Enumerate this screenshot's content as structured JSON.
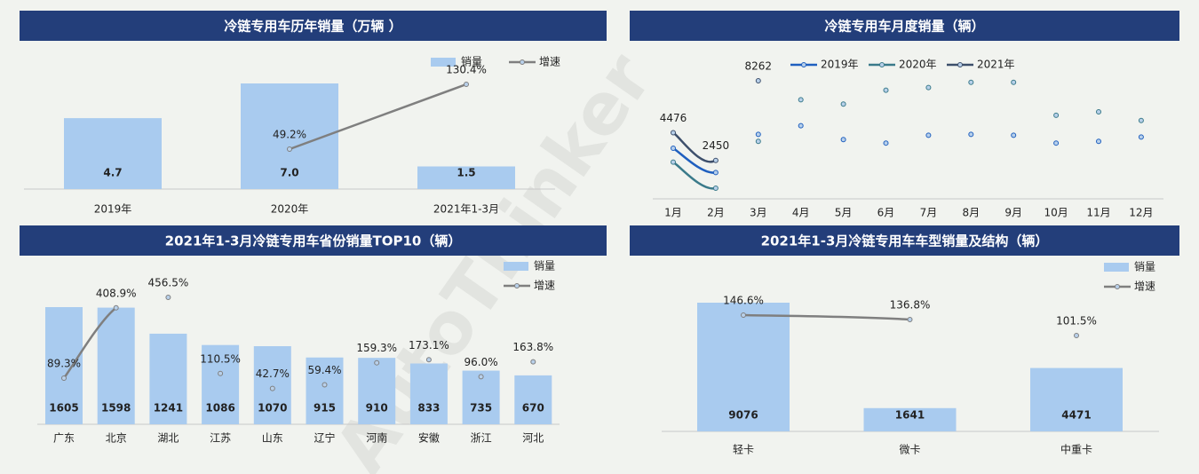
{
  "watermark": "AutoThinker",
  "chart_data": [
    {
      "type": "bar_line",
      "title": "冷链专用车历年销量（万辆 ）",
      "categories": [
        "2019年",
        "2020年",
        "2021年1-3月"
      ],
      "series": [
        {
          "name": "销量",
          "type": "bar",
          "color": "#a9cbef",
          "values": [
            4.7,
            7.0,
            1.5
          ],
          "value_labels": [
            "4.7",
            "7.0",
            "1.5"
          ]
        },
        {
          "name": "增速",
          "type": "line",
          "color": "#7f7f7f",
          "values": [
            null,
            49.2,
            130.4
          ],
          "value_labels": [
            null,
            "49.2%",
            "130.4%"
          ]
        }
      ]
    },
    {
      "type": "line",
      "title": "冷链专用车月度销量（辆）",
      "categories": [
        "1月",
        "2月",
        "3月",
        "4月",
        "5月",
        "6月",
        "7月",
        "8月",
        "9月",
        "10月",
        "11月",
        "12月"
      ],
      "series": [
        {
          "name": "2019年",
          "color": "#1f5fbf",
          "values": [
            3337,
            1565,
            4349,
            4982,
            3970,
            3716,
            4286,
            4349,
            4286,
            3716,
            3843,
            4160
          ]
        },
        {
          "name": "2020年",
          "color": "#3a7a8a",
          "values": [
            2324,
            425,
            3843,
            6881,
            6565,
            7577,
            7767,
            8147,
            8147,
            5742,
            5995,
            5362
          ]
        },
        {
          "name": "2021年",
          "color": "#3d4f6b",
          "data_labels": true,
          "values": [
            4476,
            2450,
            8262,
            null,
            null,
            null,
            null,
            null,
            null,
            null,
            null,
            null
          ]
        }
      ]
    },
    {
      "type": "bar_line",
      "title": "2021年1-3月冷链专用车省份销量TOP10（辆）",
      "categories": [
        "广东",
        "北京",
        "湖北",
        "江苏",
        "山东",
        "辽宁",
        "河南",
        "安徽",
        "浙江",
        "河北"
      ],
      "series": [
        {
          "name": "销量",
          "type": "bar",
          "color": "#a9cbef",
          "values": [
            1605,
            1598,
            1241,
            1086,
            1070,
            915,
            910,
            833,
            735,
            670
          ]
        },
        {
          "name": "增速",
          "type": "line",
          "color": "#7f7f7f",
          "values": [
            89.3,
            408.9,
            456.5,
            110.5,
            42.7,
            59.4,
            159.3,
            173.1,
            96.0,
            163.8
          ],
          "value_labels": [
            "89.3%",
            "408.9%",
            "456.5%",
            "110.5%",
            "42.7%",
            "59.4%",
            "159.3%",
            "173.1%",
            "96.0%",
            "163.8%"
          ]
        }
      ]
    },
    {
      "type": "bar_line",
      "title": "2021年1-3月冷链专用车车型销量及结构（辆）",
      "categories": [
        "轻卡",
        "微卡",
        "中重卡"
      ],
      "series": [
        {
          "name": "销量",
          "type": "bar",
          "color": "#a9cbef",
          "values": [
            9076,
            1641,
            4471
          ]
        },
        {
          "name": "增速",
          "type": "line",
          "color": "#7f7f7f",
          "values": [
            146.6,
            136.8,
            101.5
          ],
          "value_labels": [
            "146.6%",
            "136.8%",
            "101.5%"
          ]
        }
      ]
    }
  ]
}
